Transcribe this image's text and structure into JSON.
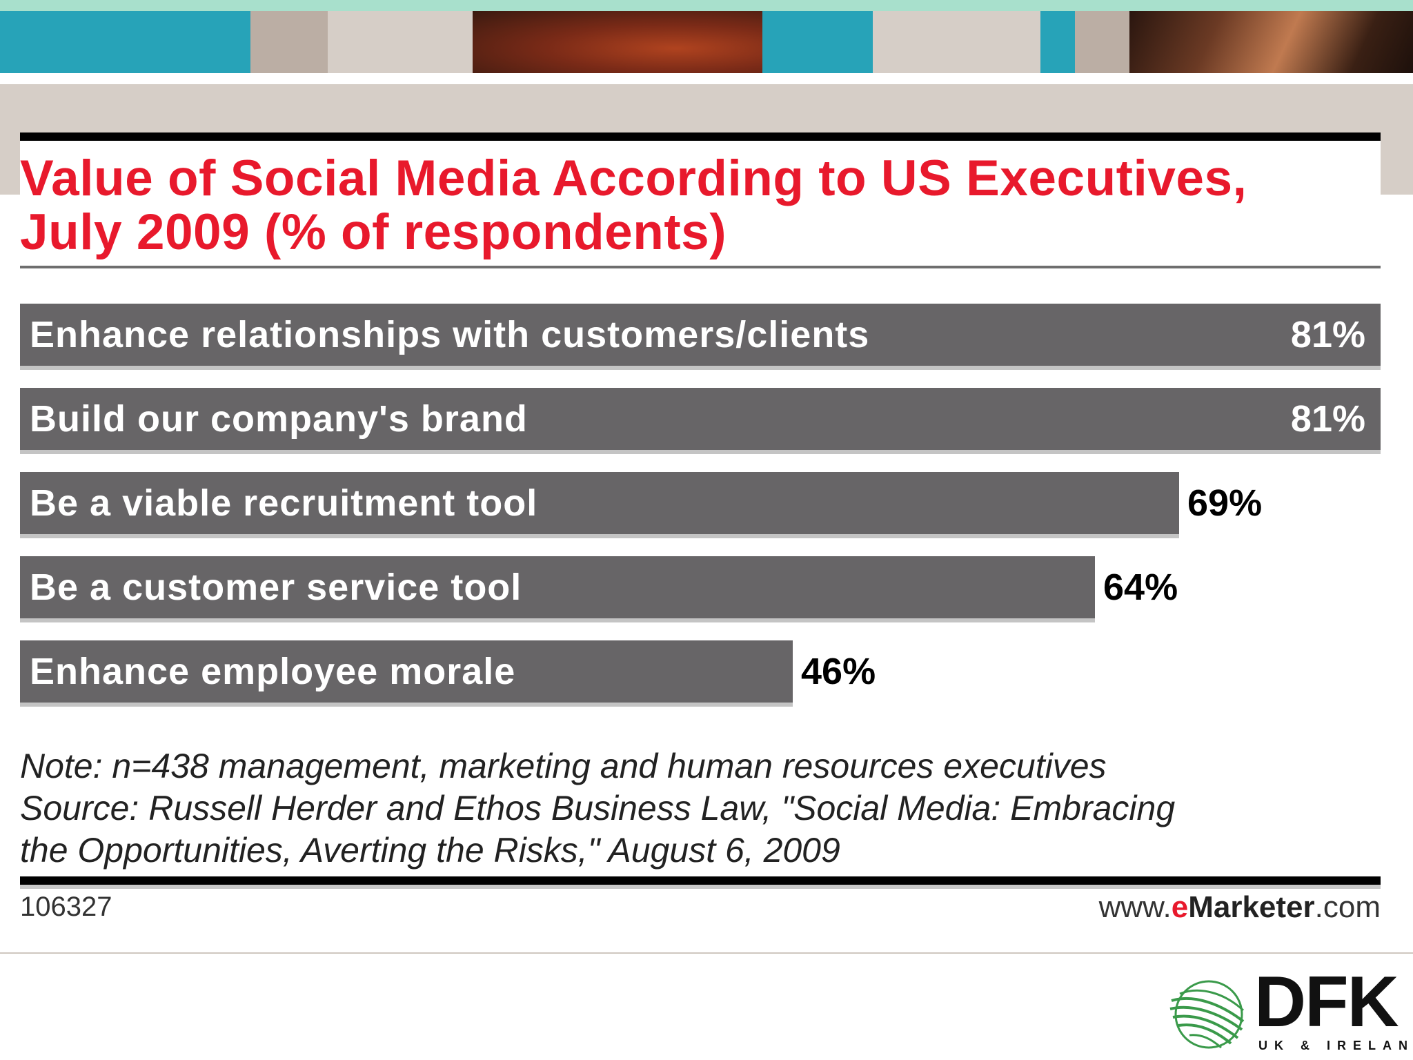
{
  "theme": {
    "mint": "#a8e0cc",
    "teal": "#27a3b8",
    "taupe": "#bbaea4",
    "light_taupe": "#d6cec7",
    "title_red": "#e8192c",
    "bar_gray": "#676567",
    "logo_green": "#3a9a4a"
  },
  "chart_data": {
    "type": "bar",
    "orientation": "horizontal",
    "title": "Value of Social Media According to US Executives, July 2009 (% of respondents)",
    "title_lines": [
      "Value of Social Media According to US Executives,",
      "July 2009 (% of respondents)"
    ],
    "categories": [
      "Enhance relationships with customers/clients",
      "Build our company's brand",
      "Be a viable recruitment tool",
      "Be a customer service tool",
      "Enhance employee morale"
    ],
    "values": [
      81,
      81,
      69,
      64,
      46
    ],
    "value_labels": [
      "81%",
      "81%",
      "69%",
      "64%",
      "46%"
    ],
    "xlim": [
      0,
      81
    ],
    "unit": "%",
    "note": "Note: n=438 management, marketing and human resources executives",
    "source_lines": [
      "Source: Russell Herder and Ethos Business Law, \"Social Media: Embracing",
      "the Opportunities, Averting the Risks,\" August 6, 2009"
    ],
    "chart_id": "106327",
    "site": {
      "prefix": "www.",
      "accent": "e",
      "brand": "Marketer",
      "suffix": ".com"
    }
  },
  "logo": {
    "name": "DFK",
    "subtitle": "UK & IRELAND",
    "mark_icon": "globe-swoosh-icon"
  }
}
